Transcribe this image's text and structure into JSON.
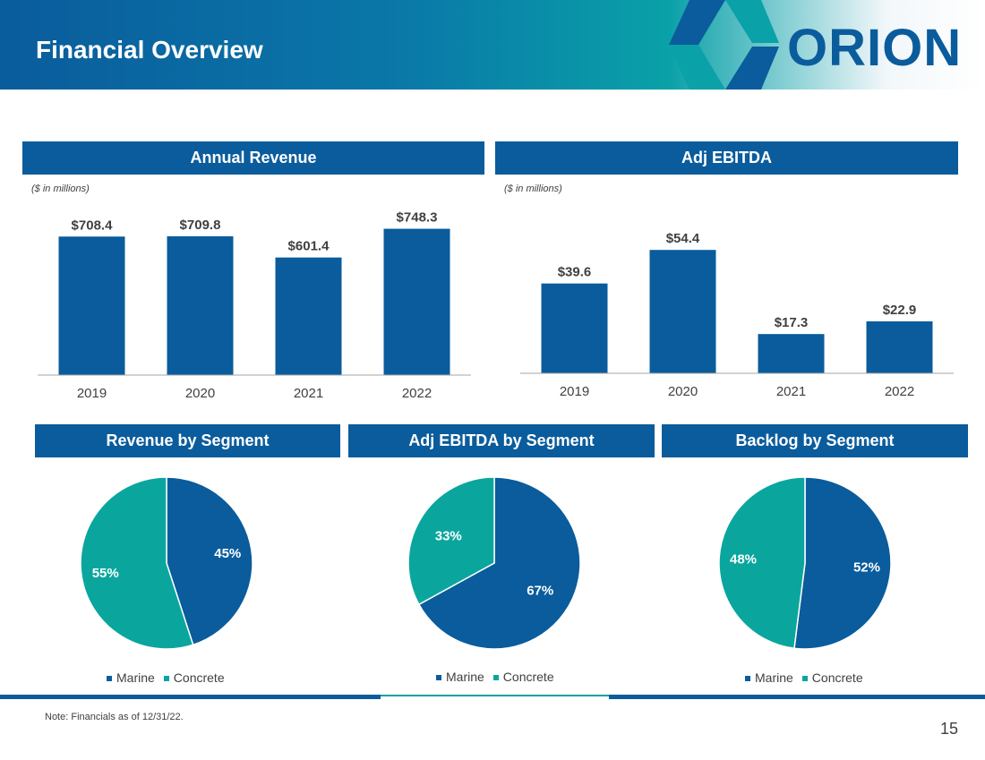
{
  "header": {
    "title": "Financial Overview",
    "logo_text": "ORION"
  },
  "colors": {
    "marine": "#0a5c9c",
    "concrete": "#0aa69e",
    "header_blue": "#0a5c9c"
  },
  "chart_data": [
    {
      "type": "bar",
      "title": "Annual Revenue",
      "unit_note": "($ in millions)",
      "categories": [
        "2019",
        "2020",
        "2021",
        "2022"
      ],
      "values": [
        708.4,
        709.8,
        601.4,
        748.3
      ],
      "labels": [
        "$708.4",
        "$709.8",
        "$601.4",
        "$748.3"
      ],
      "ylim": [
        0,
        760
      ]
    },
    {
      "type": "bar",
      "title": "Adj EBITDA",
      "unit_note": "($ in millions)",
      "categories": [
        "2019",
        "2020",
        "2021",
        "2022"
      ],
      "values": [
        39.6,
        54.4,
        17.3,
        22.9
      ],
      "labels": [
        "$39.6",
        "$54.4",
        "$17.3",
        "$22.9"
      ],
      "ylim": [
        0,
        60
      ]
    },
    {
      "type": "pie",
      "title": "Revenue by Segment",
      "slices": [
        {
          "name": "Marine",
          "value": 45,
          "label": "45%"
        },
        {
          "name": "Concrete",
          "value": 55,
          "label": "55%"
        }
      ],
      "legend": [
        "Marine",
        "Concrete"
      ]
    },
    {
      "type": "pie",
      "title": "Adj EBITDA by Segment",
      "slices": [
        {
          "name": "Marine",
          "value": 67,
          "label": "67%"
        },
        {
          "name": "Concrete",
          "value": 33,
          "label": "33%"
        }
      ],
      "legend": [
        "Marine",
        "Concrete"
      ]
    },
    {
      "type": "pie",
      "title": "Backlog by Segment",
      "slices": [
        {
          "name": "Marine",
          "value": 52,
          "label": "52%"
        },
        {
          "name": "Concrete",
          "value": 48,
          "label": "48%"
        }
      ],
      "legend": [
        "Marine",
        "Concrete"
      ]
    }
  ],
  "footer": {
    "note": "Note: Financials as of 12/31/22.",
    "page_number": "15"
  }
}
